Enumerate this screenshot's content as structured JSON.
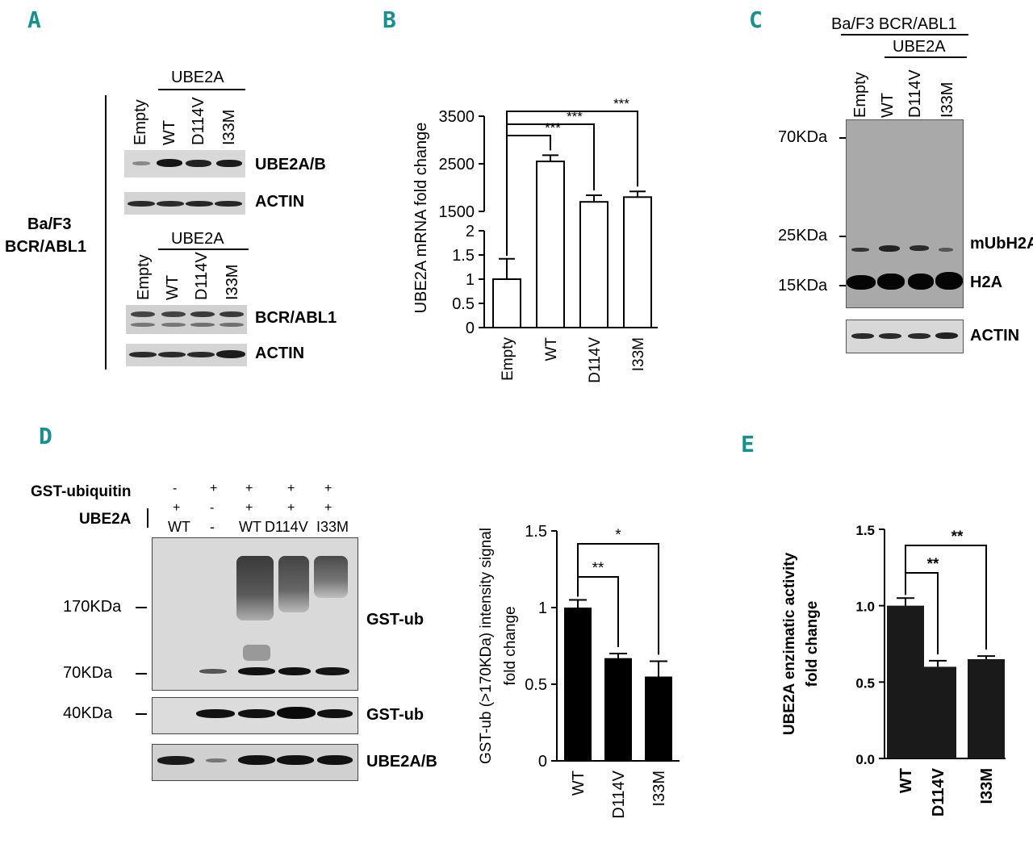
{
  "panels": {
    "A": {
      "label": "A",
      "cell_line": [
        "Ba/F3",
        "BCR/ABL1"
      ],
      "group_label": "UBE2A",
      "lanes": [
        "Empty",
        "WT",
        "D114V",
        "I33M"
      ],
      "blot_labels": [
        "UBE2A/B",
        "ACTIN",
        "BCR/ABL1",
        "ACTIN"
      ]
    },
    "B": {
      "label": "B"
    },
    "C": {
      "label": "C",
      "cell_line": "Ba/F3 BCR/ABL1",
      "group_label": "UBE2A",
      "lanes": [
        "Empty",
        "WT",
        "D114V",
        "I33M"
      ],
      "markers": [
        "70KDa",
        "25KDa",
        "15KDa"
      ],
      "blot_labels": [
        "mUbH2A",
        "H2A",
        "ACTIN"
      ]
    },
    "D": {
      "label": "D",
      "row_labels": [
        "GST-ubiquitin",
        "UBE2A"
      ],
      "gst_ubiquitin_signs": [
        "-",
        "+",
        "+",
        "+",
        "+"
      ],
      "ube2a_signs": [
        "+",
        "-",
        "+",
        "+",
        "+"
      ],
      "lane_names": [
        "WT",
        "-",
        "WT",
        "D114V",
        "I33M"
      ],
      "markers": [
        "170KDa",
        "70KDa",
        "40KDa"
      ],
      "blot_labels": [
        "GST-ub",
        "GST-ub",
        "UBE2A/B"
      ]
    },
    "E": {
      "label": "E"
    }
  },
  "chart_data": [
    {
      "type": "bar",
      "panel": "B",
      "categories": [
        "Empty",
        "WT",
        "D114V",
        "I33M"
      ],
      "values": [
        1,
        2550,
        1700,
        1800
      ],
      "errors": [
        0.42,
        130,
        140,
        120
      ],
      "ylabel": "UBE2A mRNA fold change",
      "axis_break": true,
      "lower_ticks": [
        "0",
        "0.5",
        "1",
        "1.5",
        "2"
      ],
      "upper_ticks": [
        "1500",
        "2500",
        "3500"
      ],
      "significance": [
        "***",
        "***",
        "***"
      ]
    },
    {
      "type": "bar",
      "panel": "D",
      "categories": [
        "WT",
        "D114V",
        "I33M"
      ],
      "values": [
        1.0,
        0.67,
        0.55
      ],
      "errors": [
        0.05,
        0.03,
        0.1
      ],
      "ylabel": "GST-ub (>170KDa) intensity signal fold change",
      "ylim": [
        0,
        1.5
      ],
      "ticks": [
        "0",
        "0.5",
        "1",
        "1.5"
      ],
      "significance": [
        "**",
        "*"
      ],
      "bar_color": "#000000"
    },
    {
      "type": "bar",
      "panel": "E",
      "categories": [
        "WT",
        "D114V",
        "I33M"
      ],
      "values": [
        1.0,
        0.6,
        0.65
      ],
      "errors": [
        0.05,
        0.04,
        0.02
      ],
      "ylabel": "UBE2A enzimatic activity fold change",
      "ylim": [
        0,
        1.5
      ],
      "ticks": [
        "0.0",
        "0.5",
        "1.0",
        "1.5"
      ],
      "significance": [
        "**",
        "**"
      ],
      "bar_color": "#1a1a1a"
    }
  ]
}
